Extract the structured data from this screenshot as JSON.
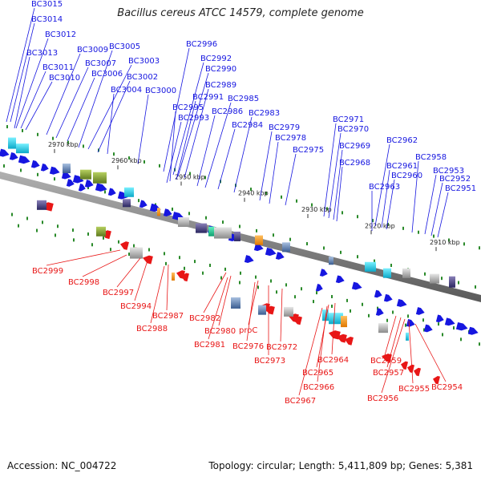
{
  "title": "Bacillus cereus ATCC 14579, complete genome",
  "footer": {
    "accession": "Accession: NC_004722",
    "topology": "Topology: circular; Length: 5,411,809 bp; Genes: 5,381"
  },
  "colors": {
    "forward": "#1616e0",
    "reverse": "#e81616",
    "backbone": "#808080",
    "tick": "#2a8a2a"
  },
  "scale": [
    "2970 kbp",
    "2960 kbp",
    "2950 kbp",
    "2940 kbp",
    "2930 kbp",
    "2920 kbp",
    "2910 kbp"
  ],
  "top_labels": [
    "BC3015",
    "BC3014",
    "BC3012",
    "BC3013",
    "BC3011",
    "BC3010",
    "BC3009",
    "BC3007",
    "BC3006",
    "BC3005",
    "BC3003",
    "BC3002",
    "BC3004",
    "BC3000",
    "BC2996",
    "BC2992",
    "BC2990",
    "BC2989",
    "BC2991",
    "BC2995",
    "BC2993",
    "BC2986",
    "BC2985",
    "BC2984",
    "BC2983",
    "BC2979",
    "BC2978",
    "BC2975",
    "BC2971",
    "BC2970",
    "BC2969",
    "BC2968",
    "BC2962",
    "BC2961",
    "BC2960",
    "BC2963",
    "BC2958",
    "BC2953",
    "BC2952",
    "BC2951"
  ],
  "bottom_labels": [
    "BC2999",
    "BC2998",
    "BC2997",
    "BC2994",
    "BC2987",
    "BC2988",
    "BC2982",
    "BC2980",
    "BC2981",
    "proC",
    "BC2976",
    "BC2973",
    "BC2972",
    "BC2964",
    "BC2965",
    "BC2966",
    "BC2967",
    "BC2959",
    "BC2957",
    "BC2956",
    "BC2955",
    "BC2954"
  ]
}
